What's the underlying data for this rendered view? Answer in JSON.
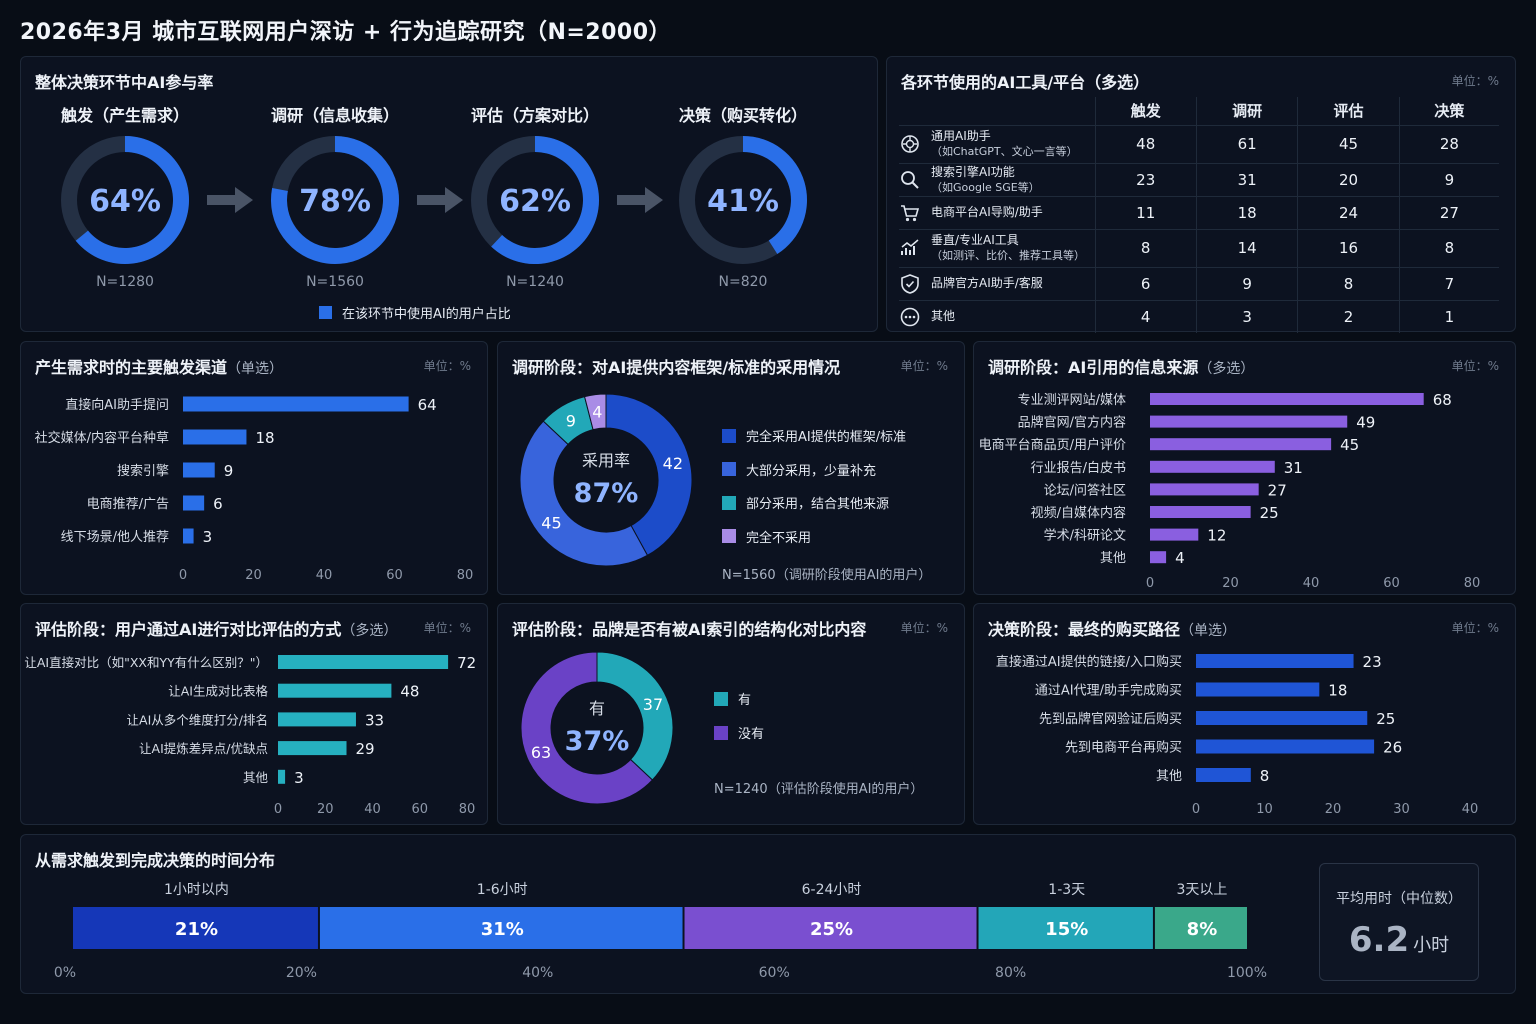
{
  "page_title": "2026年3月  城市互联网用户深访 + 行为追踪研究（N=2000）",
  "colors": {
    "blue": "#2a6fe8",
    "dark_blue": "#1c4cc9",
    "mid_blue": "#3368e0",
    "teal": "#22a8b8",
    "purple": "#7a4fd0",
    "light_purple": "#a98ce6",
    "green": "#3aa88a",
    "ring_bg": "#243044"
  },
  "participation": {
    "title": "整体决策环节中AI参与率",
    "legend": "在该环节中使用AI的用户占比",
    "stages": [
      {
        "label": "触发（产生需求）",
        "value": 64,
        "value_text": "64%",
        "n": "N=1280"
      },
      {
        "label": "调研（信息收集）",
        "value": 78,
        "value_text": "78%",
        "n": "N=1560"
      },
      {
        "label": "评估（方案对比）",
        "value": 62,
        "value_text": "62%",
        "n": "N=1240"
      },
      {
        "label": "决策（购买转化）",
        "value": 41,
        "value_text": "41%",
        "n": "N=820"
      }
    ]
  },
  "tools": {
    "title": "各环节使用的AI工具/平台（多选）",
    "unit": "单位：%",
    "columns": [
      "触发",
      "调研",
      "评估",
      "决策"
    ],
    "rows": [
      {
        "icon": "openai-icon",
        "label": "通用AI助手",
        "sub": "（如ChatGPT、文心一言等）",
        "values": [
          48,
          61,
          45,
          28
        ]
      },
      {
        "icon": "search-icon",
        "label": "搜索引擎AI功能",
        "sub": "（如Google SGE等）",
        "values": [
          23,
          31,
          20,
          9
        ]
      },
      {
        "icon": "cart-icon",
        "label": "电商平台AI导购/助手",
        "sub": "",
        "values": [
          11,
          18,
          24,
          27
        ]
      },
      {
        "icon": "analytics-icon",
        "label": "垂直/专业AI工具",
        "sub": "（如测评、比价、推荐工具等）",
        "values": [
          8,
          14,
          16,
          8
        ]
      },
      {
        "icon": "shield-icon",
        "label": "品牌官方AI助手/客服",
        "sub": "",
        "values": [
          6,
          9,
          8,
          7
        ]
      },
      {
        "icon": "more-icon",
        "label": "其他",
        "sub": "",
        "values": [
          4,
          3,
          2,
          1
        ]
      }
    ]
  },
  "trigger": {
    "title": "产生需求时的主要触发渠道",
    "title_sub": "（单选）",
    "unit": "单位：%"
  },
  "framework": {
    "title": "调研阶段：对AI提供内容框架/标准的采用情况",
    "unit": "单位：%",
    "center_label": "采用率",
    "center_value": "87%",
    "note": "N=1560（调研阶段使用AI的用户）"
  },
  "sources": {
    "title": "调研阶段：AI引用的信息来源",
    "title_sub": "（多选）",
    "unit": "单位：%"
  },
  "eval_methods": {
    "title": "评估阶段：用户通过AI进行对比评估的方式",
    "title_sub": "（多选）",
    "unit": "单位：%"
  },
  "indexed": {
    "title": "评估阶段：品牌是否有被AI索引的结构化对比内容",
    "unit": "单位：%",
    "center_label": "有",
    "center_value": "37%",
    "note": "N=1240（评估阶段使用AI的用户）"
  },
  "purchase": {
    "title": "决策阶段：最终的购买路径",
    "title_sub": "（单选）",
    "unit": "单位：%"
  },
  "time_dist": {
    "title": "从需求触发到完成决策的时间分布",
    "median_label": "平均用时（中位数）",
    "median_value": "6.2",
    "median_unit": "小时"
  },
  "chart_data": [
    {
      "id": "trigger",
      "type": "bar",
      "orientation": "horizontal",
      "categories": [
        "直接向AI助手提问",
        "社交媒体/内容平台种草",
        "搜索引擎",
        "电商推荐/广告",
        "线下场景/他人推荐"
      ],
      "values": [
        64,
        18,
        9,
        6,
        3
      ],
      "xlim": [
        0,
        80
      ],
      "xticks": [
        0,
        20,
        40,
        60,
        80
      ]
    },
    {
      "id": "framework",
      "type": "pie",
      "categories": [
        "完全采用AI提供的框架/标准",
        "大部分采用，少量补充",
        "部分采用，结合其他来源",
        "完全不采用"
      ],
      "values": [
        42,
        45,
        9,
        4
      ]
    },
    {
      "id": "sources",
      "type": "bar",
      "orientation": "horizontal",
      "categories": [
        "专业测评网站/媒体",
        "品牌官网/官方内容",
        "电商平台商品页/用户评价",
        "行业报告/白皮书",
        "论坛/问答社区",
        "视频/自媒体内容",
        "学术/科研论文",
        "其他"
      ],
      "values": [
        68,
        49,
        45,
        31,
        27,
        25,
        12,
        4
      ],
      "xlim": [
        0,
        80
      ],
      "xticks": [
        0,
        20,
        40,
        60,
        80
      ]
    },
    {
      "id": "eval_methods",
      "type": "bar",
      "orientation": "horizontal",
      "categories": [
        "让AI直接对比（如\"XX和YY有什么区别？\"）",
        "让AI生成对比表格",
        "让AI从多个维度打分/排名",
        "让AI提炼差异点/优缺点",
        "其他"
      ],
      "values": [
        72,
        48,
        33,
        29,
        3
      ],
      "xlim": [
        0,
        80
      ],
      "xticks": [
        0,
        20,
        40,
        60,
        80
      ]
    },
    {
      "id": "indexed",
      "type": "pie",
      "categories": [
        "有",
        "没有"
      ],
      "values": [
        37,
        63
      ]
    },
    {
      "id": "purchase",
      "type": "bar",
      "orientation": "horizontal",
      "categories": [
        "直接通过AI提供的链接/入口购买",
        "通过AI代理/助手完成购买",
        "先到品牌官网验证后购买",
        "先到电商平台再购买",
        "其他"
      ],
      "values": [
        23,
        18,
        25,
        26,
        8
      ],
      "xlim": [
        0,
        40
      ],
      "xticks": [
        0,
        10,
        20,
        30,
        40
      ]
    },
    {
      "id": "time_dist",
      "type": "bar",
      "orientation": "stacked-horizontal",
      "categories": [
        "1小时以内",
        "1-6小时",
        "6-24小时",
        "1-3天",
        "3天以上"
      ],
      "values": [
        21,
        31,
        25,
        15,
        8
      ],
      "value_labels": [
        "21%",
        "31%",
        "25%",
        "15%",
        "8%"
      ],
      "xticks": [
        "0%",
        "20%",
        "40%",
        "60%",
        "80%",
        "100%"
      ]
    }
  ]
}
